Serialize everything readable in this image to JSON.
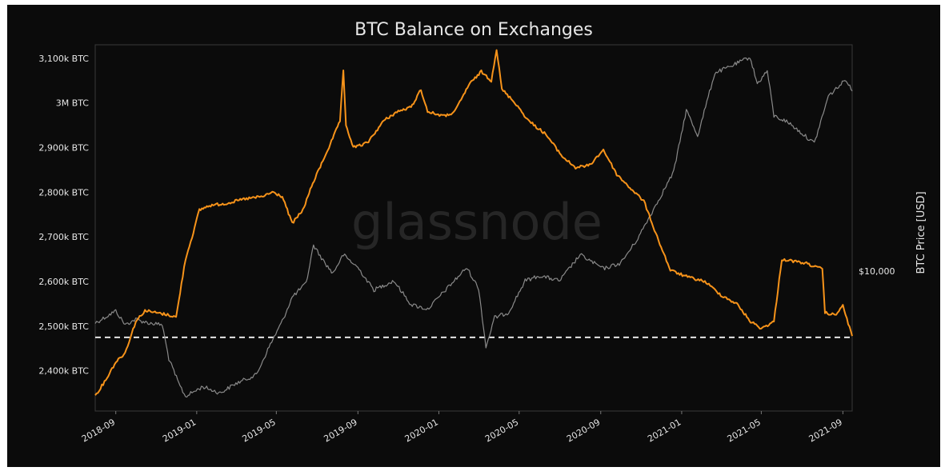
{
  "chart_data": {
    "type": "line",
    "title": "BTC Balance on Exchanges",
    "watermark": "glassnode",
    "x_ticks": [
      "2018-09",
      "2019-01",
      "2019-05",
      "2019-09",
      "2020-01",
      "2020-05",
      "2020-09",
      "2021-01",
      "2021-05",
      "2021-09"
    ],
    "x_range": [
      "2018-08-01",
      "2021-09-15"
    ],
    "y_left": {
      "ticks": [
        {
          "value": 2400000,
          "label": "2,400k BTC"
        },
        {
          "value": 2500000,
          "label": "2,500k BTC"
        },
        {
          "value": 2600000,
          "label": "2,600k BTC"
        },
        {
          "value": 2700000,
          "label": "2,700k BTC"
        },
        {
          "value": 2800000,
          "label": "2,800k BTC"
        },
        {
          "value": 2900000,
          "label": "2,900k BTC"
        },
        {
          "value": 3000000,
          "label": "3M BTC"
        },
        {
          "value": 3100000,
          "label": "3,100k BTC"
        }
      ],
      "range": [
        2310000,
        3130000
      ]
    },
    "y_right": {
      "label": "BTC Price [USD]",
      "scale": "log",
      "ticks": [
        {
          "value": 10000,
          "label": "$10,000"
        }
      ],
      "range": [
        3000,
        70000
      ]
    },
    "reference_line": {
      "value": 2475000,
      "style": "dashed",
      "color": "#e6e6e6"
    },
    "series": [
      {
        "axis": "left",
        "color": "#f7931a",
        "points": [
          [
            "2018-08-01",
            2345000
          ],
          [
            "2018-08-15",
            2375000
          ],
          [
            "2018-09-01",
            2420000
          ],
          [
            "2018-09-15",
            2440000
          ],
          [
            "2018-10-01",
            2510000
          ],
          [
            "2018-10-15",
            2535000
          ],
          [
            "2018-11-01",
            2530000
          ],
          [
            "2018-11-20",
            2525000
          ],
          [
            "2018-12-01",
            2520000
          ],
          [
            "2018-12-15",
            2650000
          ],
          [
            "2018-12-25",
            2700000
          ],
          [
            "2019-01-05",
            2760000
          ],
          [
            "2019-01-20",
            2770000
          ],
          [
            "2019-02-15",
            2775000
          ],
          [
            "2019-03-15",
            2785000
          ],
          [
            "2019-04-10",
            2790000
          ],
          [
            "2019-04-25",
            2800000
          ],
          [
            "2019-05-10",
            2790000
          ],
          [
            "2019-05-25",
            2730000
          ],
          [
            "2019-06-10",
            2760000
          ],
          [
            "2019-06-25",
            2820000
          ],
          [
            "2019-07-10",
            2870000
          ],
          [
            "2019-07-25",
            2920000
          ],
          [
            "2019-08-05",
            2960000
          ],
          [
            "2019-08-10",
            3070000
          ],
          [
            "2019-08-14",
            2950000
          ],
          [
            "2019-08-25",
            2900000
          ],
          [
            "2019-09-15",
            2910000
          ],
          [
            "2019-10-10",
            2960000
          ],
          [
            "2019-10-30",
            2980000
          ],
          [
            "2019-11-20",
            2990000
          ],
          [
            "2019-12-05",
            3030000
          ],
          [
            "2019-12-15",
            2980000
          ],
          [
            "2020-01-10",
            2970000
          ],
          [
            "2020-01-25",
            2980000
          ],
          [
            "2020-02-15",
            3040000
          ],
          [
            "2020-03-05",
            3070000
          ],
          [
            "2020-03-20",
            3050000
          ],
          [
            "2020-03-28",
            3120000
          ],
          [
            "2020-04-05",
            3030000
          ],
          [
            "2020-04-25",
            3000000
          ],
          [
            "2020-05-15",
            2960000
          ],
          [
            "2020-06-10",
            2930000
          ],
          [
            "2020-07-05",
            2880000
          ],
          [
            "2020-07-25",
            2855000
          ],
          [
            "2020-08-15",
            2860000
          ],
          [
            "2020-09-05",
            2895000
          ],
          [
            "2020-09-25",
            2840000
          ],
          [
            "2020-10-15",
            2810000
          ],
          [
            "2020-11-05",
            2780000
          ],
          [
            "2020-11-25",
            2700000
          ],
          [
            "2020-12-15",
            2625000
          ],
          [
            "2021-01-10",
            2610000
          ],
          [
            "2021-02-05",
            2600000
          ],
          [
            "2021-03-01",
            2570000
          ],
          [
            "2021-03-25",
            2550000
          ],
          [
            "2021-04-15",
            2510000
          ],
          [
            "2021-05-01",
            2495000
          ],
          [
            "2021-05-20",
            2510000
          ],
          [
            "2021-06-01",
            2650000
          ],
          [
            "2021-06-20",
            2645000
          ],
          [
            "2021-07-10",
            2640000
          ],
          [
            "2021-07-25",
            2630000
          ],
          [
            "2021-08-01",
            2630000
          ],
          [
            "2021-08-05",
            2530000
          ],
          [
            "2021-08-20",
            2525000
          ],
          [
            "2021-09-01",
            2545000
          ],
          [
            "2021-09-15",
            2478000
          ]
        ]
      },
      {
        "axis": "right",
        "color": "#8a8a8a",
        "points": [
          [
            "2018-08-01",
            6400
          ],
          [
            "2018-08-15",
            6700
          ],
          [
            "2018-09-01",
            7100
          ],
          [
            "2018-09-15",
            6300
          ],
          [
            "2018-10-01",
            6600
          ],
          [
            "2018-10-20",
            6400
          ],
          [
            "2018-11-10",
            6300
          ],
          [
            "2018-11-20",
            4700
          ],
          [
            "2018-12-05",
            3800
          ],
          [
            "2018-12-15",
            3400
          ],
          [
            "2019-01-10",
            3700
          ],
          [
            "2019-02-05",
            3500
          ],
          [
            "2019-03-01",
            3800
          ],
          [
            "2019-04-01",
            4100
          ],
          [
            "2019-04-20",
            5200
          ],
          [
            "2019-05-10",
            6500
          ],
          [
            "2019-05-25",
            8000
          ],
          [
            "2019-06-15",
            9000
          ],
          [
            "2019-06-26",
            12500
          ],
          [
            "2019-07-10",
            11000
          ],
          [
            "2019-07-25",
            9800
          ],
          [
            "2019-08-10",
            11500
          ],
          [
            "2019-09-01",
            10300
          ],
          [
            "2019-09-25",
            8500
          ],
          [
            "2019-10-25",
            9200
          ],
          [
            "2019-11-20",
            7500
          ],
          [
            "2019-12-15",
            7200
          ],
          [
            "2020-01-15",
            8700
          ],
          [
            "2020-02-12",
            10300
          ],
          [
            "2020-03-01",
            8600
          ],
          [
            "2020-03-12",
            5200
          ],
          [
            "2020-03-25",
            6700
          ],
          [
            "2020-04-15",
            7000
          ],
          [
            "2020-05-10",
            9200
          ],
          [
            "2020-06-01",
            9600
          ],
          [
            "2020-07-01",
            9200
          ],
          [
            "2020-08-01",
            11500
          ],
          [
            "2020-09-05",
            10200
          ],
          [
            "2020-10-01",
            10700
          ],
          [
            "2020-10-25",
            13000
          ],
          [
            "2020-11-25",
            18000
          ],
          [
            "2020-12-20",
            23500
          ],
          [
            "2021-01-08",
            40000
          ],
          [
            "2021-01-25",
            32000
          ],
          [
            "2021-02-20",
            55000
          ],
          [
            "2021-03-15",
            58000
          ],
          [
            "2021-04-14",
            63000
          ],
          [
            "2021-04-25",
            50000
          ],
          [
            "2021-05-10",
            56000
          ],
          [
            "2021-05-20",
            38000
          ],
          [
            "2021-06-10",
            36000
          ],
          [
            "2021-07-20",
            30000
          ],
          [
            "2021-08-10",
            45000
          ],
          [
            "2021-09-06",
            52000
          ],
          [
            "2021-09-15",
            47000
          ]
        ]
      }
    ]
  }
}
